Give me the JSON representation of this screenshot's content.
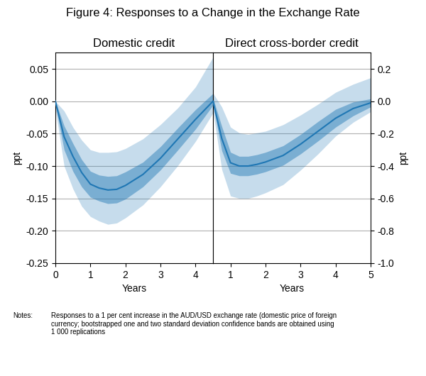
{
  "title": "Figure 4: Responses to a Change in the Exchange Rate",
  "annotations": [
    "Notes:",
    "Responses to a 1 per cent increase in the AUD/USD exchange rate (domestic price of foreign\ncurrency; bootstrapped one and two standard deviation confidence bands are obtained using\n1 000 replications"
  ],
  "chart_data": [
    {
      "type": "line",
      "title": "Domestic credit",
      "x_label": "Years",
      "y_label": "ppt",
      "x": [
        0.0,
        0.25,
        0.5,
        0.75,
        1.0,
        1.25,
        1.5,
        1.75,
        2.0,
        2.5,
        3.0,
        3.5,
        4.0,
        4.5
      ],
      "values": [
        0.0,
        -0.055,
        -0.085,
        -0.11,
        -0.128,
        -0.134,
        -0.137,
        -0.136,
        -0.13,
        -0.113,
        -0.088,
        -0.058,
        -0.028,
        0.0
      ],
      "band_1sd": {
        "lo": [
          -0.005,
          -0.075,
          -0.108,
          -0.132,
          -0.148,
          -0.154,
          -0.158,
          -0.157,
          -0.151,
          -0.132,
          -0.106,
          -0.075,
          -0.043,
          -0.006
        ],
        "hi": [
          0.0,
          -0.038,
          -0.065,
          -0.09,
          -0.108,
          -0.114,
          -0.116,
          -0.115,
          -0.109,
          -0.094,
          -0.07,
          -0.041,
          -0.013,
          0.012
        ]
      },
      "band_2sd": {
        "lo": [
          -0.012,
          -0.1,
          -0.135,
          -0.162,
          -0.178,
          -0.185,
          -0.19,
          -0.188,
          -0.18,
          -0.16,
          -0.132,
          -0.099,
          -0.062,
          -0.018
        ],
        "hi": [
          0.0,
          -0.015,
          -0.04,
          -0.06,
          -0.075,
          -0.079,
          -0.079,
          -0.078,
          -0.073,
          -0.058,
          -0.036,
          -0.01,
          0.022,
          0.068
        ]
      },
      "xlim": [
        0,
        4.5
      ],
      "xticks": [
        0,
        1,
        2,
        3,
        4
      ],
      "ylim": [
        -0.25,
        0.075
      ],
      "yticks": [
        {
          "value": -0.25,
          "label": "-0.25"
        },
        {
          "value": -0.2,
          "label": "-0.20"
        },
        {
          "value": -0.15,
          "label": "-0.15"
        },
        {
          "value": -0.1,
          "label": "-0.10"
        },
        {
          "value": -0.05,
          "label": "-0.05"
        },
        {
          "value": 0.0,
          "label": "0.00"
        },
        {
          "value": 0.05,
          "label": "0.05"
        }
      ],
      "grid": true
    },
    {
      "type": "line",
      "title": "Direct cross-border credit",
      "x_label": "Years",
      "y_label": "ppt",
      "x": [
        0.5,
        0.75,
        1.0,
        1.25,
        1.5,
        1.75,
        2.0,
        2.5,
        3.0,
        3.5,
        4.0,
        4.5,
        5.0
      ],
      "values": [
        0.0,
        -0.23,
        -0.38,
        -0.4,
        -0.4,
        -0.39,
        -0.375,
        -0.335,
        -0.265,
        -0.185,
        -0.105,
        -0.045,
        -0.01
      ],
      "band_1sd": {
        "lo": [
          -0.02,
          -0.305,
          -0.445,
          -0.46,
          -0.46,
          -0.45,
          -0.435,
          -0.395,
          -0.325,
          -0.245,
          -0.16,
          -0.09,
          -0.035
        ],
        "hi": [
          0.02,
          -0.155,
          -0.315,
          -0.34,
          -0.34,
          -0.33,
          -0.315,
          -0.275,
          -0.205,
          -0.125,
          -0.05,
          -0.005,
          0.015
        ]
      },
      "band_2sd": {
        "lo": [
          -0.06,
          -0.42,
          -0.585,
          -0.6,
          -0.6,
          -0.585,
          -0.565,
          -0.515,
          -0.425,
          -0.325,
          -0.215,
          -0.13,
          -0.065
        ],
        "hi": [
          0.05,
          -0.035,
          -0.16,
          -0.195,
          -0.205,
          -0.195,
          -0.185,
          -0.145,
          -0.085,
          -0.018,
          0.055,
          0.105,
          0.145
        ]
      },
      "xlim": [
        0.5,
        5.0
      ],
      "xticks": [
        1,
        2,
        3,
        4,
        5
      ],
      "ylim": [
        -1.0,
        0.3
      ],
      "yticks": [
        -1.0,
        -0.8,
        -0.6,
        -0.4,
        -0.2,
        0.0,
        0.2
      ],
      "grid": true
    }
  ]
}
